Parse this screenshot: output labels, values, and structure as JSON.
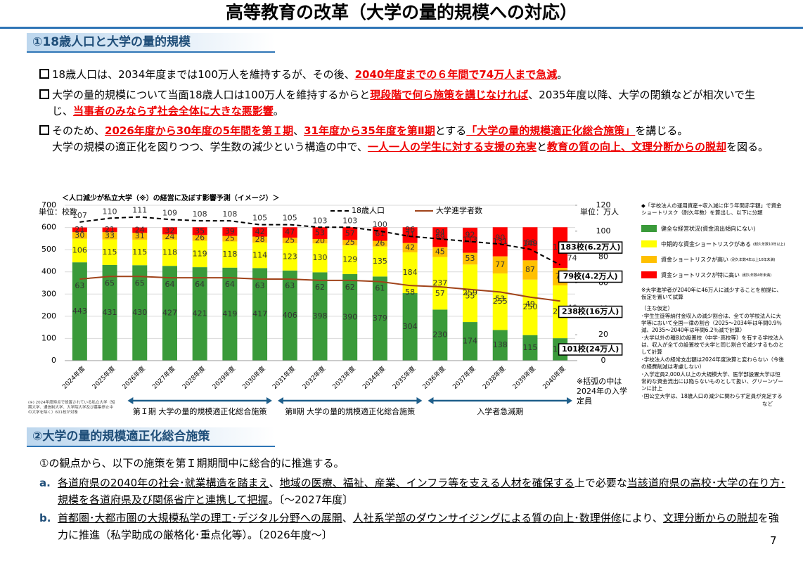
{
  "title": "高等教育の改革（大学の量的規模への対応）",
  "section1": {
    "heading": "①18歳人口と大学の量的規模",
    "bullets": [
      {
        "segments": [
          {
            "text": "18歳人口は、2034年度までは100万人を維持するが、その後、",
            "em": false
          },
          {
            "text": "2040年度までの６年間で74万人まで急減",
            "em": true
          },
          {
            "text": "。",
            "em": false
          }
        ]
      },
      {
        "segments": [
          {
            "text": "大学の量的規模について当面18歳人口は100万人を維持するからと",
            "em": false
          },
          {
            "text": "現段階で何ら施策を講じなければ",
            "em": true
          },
          {
            "text": "、2035年度以降、大学の閉鎖などが相次いで生じ、",
            "em": false
          },
          {
            "text": "当事者のみならず社会全体に大きな悪影響",
            "em": true
          },
          {
            "text": "。",
            "em": false
          }
        ]
      },
      {
        "segments": [
          {
            "text": "そのため、",
            "em": false
          },
          {
            "text": "2026年度から30年度の5年間を第Ｉ期",
            "em": true
          },
          {
            "text": "、",
            "em": false
          },
          {
            "text": "31年度から35年度を第Ⅱ期",
            "em": true
          },
          {
            "text": "とする",
            "em": false
          },
          {
            "text": "「大学の量的規模適正化総合施策」",
            "em": true
          },
          {
            "text": "を講じる。",
            "em": false
          }
        ],
        "continuation": [
          {
            "text": "大学の規模の適正化を図りつつ、学生数の減少という構造の中で、",
            "em": false
          },
          {
            "text": "一人一人の学生に対する支援の充実",
            "em": true
          },
          {
            "text": "と",
            "em": false
          },
          {
            "text": "教育の質の向上、文理分断からの脱却",
            "em": true
          },
          {
            "text": "を図る。",
            "em": false
          }
        ]
      }
    ]
  },
  "chart_data": {
    "type": "stacked-bar-line",
    "title": "＜人口減少が私立大学（※）の経営に及ぼす影響予測（イメージ）＞",
    "y_unit": "単位：校数",
    "y2_unit": "単位：万人",
    "categories": [
      "2024年度",
      "2025年度",
      "2026年度",
      "2027年度",
      "2028年度",
      "2029年度",
      "2030年度",
      "2031年度",
      "2032年度",
      "2033年度",
      "2034年度",
      "2035年度",
      "2036年度",
      "2037年度",
      "2038年度",
      "2039年度",
      "2040年度"
    ],
    "series": [
      {
        "name": "健全な経営状況(資金流出傾向にない)",
        "color": "#3a9a3a",
        "values": [
          443,
          431,
          430,
          427,
          421,
          419,
          417,
          406,
          398,
          390,
          379,
          304,
          230,
          174,
          138,
          115,
          101
        ]
      },
      {
        "name": "中期的な資金ショートリスクがある",
        "legend_note": "(耐久年数10年以上)",
        "color": "#ffff00",
        "values": [
          106,
          115,
          115,
          118,
          119,
          118,
          114,
          123,
          130,
          129,
          135,
          184,
          237,
          259,
          255,
          250,
          238
        ]
      },
      {
        "name": "資金ショートリスクが高い",
        "legend_note": "(耐久年数4年以上10年未満)",
        "color": "#ffc000",
        "values": [
          30,
          33,
          31,
          24,
          26,
          25,
          28,
          25,
          20,
          25,
          26,
          42,
          45,
          53,
          77,
          87,
          79
        ]
      },
      {
        "name": "資金ショートリスクが特に高い",
        "legend_note": "(耐久年数4年未満)",
        "color": "#ff0000",
        "values": [
          21,
          21,
          24,
          32,
          35,
          39,
          42,
          47,
          53,
          57,
          61,
          71,
          89,
          113,
          131,
          149,
          183
        ]
      },
      {
        "name": "18歳人口",
        "axis": "y2",
        "line": "dashed",
        "color": "#000000",
        "values": [
          107,
          110,
          111,
          109,
          108,
          108,
          105,
          105,
          103,
          103,
          100,
          96,
          94,
          92,
          90,
          86,
          74
        ]
      },
      {
        "name": "大学進学者数",
        "axis": "y2",
        "line": "solid",
        "color": "#a0431a",
        "values": [
          63,
          65,
          65,
          64,
          64,
          64,
          63,
          63,
          62,
          62,
          61,
          58,
          57,
          55,
          53,
          49,
          46
        ]
      }
    ],
    "end_labels": [
      "101校(24万人)",
      "238校(16万人)",
      "79校(4.2万人)",
      "183校(6.2万人)"
    ],
    "ylim": [
      0,
      700
    ],
    "yticks": [
      0,
      100,
      200,
      300,
      400,
      500,
      600,
      700
    ],
    "y2lim": [
      0,
      120
    ],
    "y2ticks": [
      0,
      20,
      40,
      60,
      80,
      100,
      120
    ],
    "grid": true,
    "legend_header": "◆「学校法人の運用資産÷収入減に伴う年間赤字額」で資金ショートリスク（耐久年数）を算出し、以下に分類",
    "notes": [
      "※大学進学者が2040年に46万人に減少することを前提に、仮定を置いて試算",
      "（主な仮定）",
      "･学生生徒等納付金収入の減少割合は、全ての学校法人に大学等において全国一律の割合（2025～2034年は年間0.9％減、2035～2040年は年間6.2％減で計算）",
      "･大学以外の種別の設置校（中学･高校等）を有する学校法人は、収入が全ての設置校で大学と同じ割合で減少するものとして計算",
      "･学校法人の経常支出額は2024年度決算と変わらない（今後の経費削減は考慮しない）",
      "･入学定員2,000人以上の大規模大学、医学部設置大学は恒常的な資金流出には陥らないものとして扱い、グリーンゾーンに計上",
      "･国公立大学は、18歳人口の減少に関わらず定員が充足する"
    ],
    "notes_end": "など",
    "bracket_note": "※括弧の中は2024年の入学定員",
    "footnote": "(※) 2024年度時点で設置されている私立大学（短期大学、通信制大学、大学院大学及び募集停止中の大学を除く）601校が対象",
    "phases": [
      {
        "label": "第Ｉ期 大学の量的規模適正化総合施策",
        "from": 2,
        "to": 6
      },
      {
        "label": "第Ⅱ期 大学の量的規模適正化総合施策",
        "from": 7,
        "to": 11
      },
      {
        "label": "入学者急減期",
        "from": 12,
        "to": 16
      }
    ]
  },
  "section2": {
    "heading": "②大学の量的規模適正化総合施策",
    "intro": "①の観点から、以下の施策を第Ｉ期期間中に総合的に推進する。",
    "items": [
      {
        "marker": "a.",
        "segments": [
          {
            "text": "各道府県の2040年の社会･就業構造を踏まえ",
            "u": true
          },
          {
            "text": "、",
            "u": false
          },
          {
            "text": "地域の医療、福祉、産業、インフラ等を支える人材を確保する",
            "u": true
          },
          {
            "text": "上で必要な",
            "u": false
          },
          {
            "text": "当該道府県の高校･大学の在り方･規模を各道府県及び関係省庁と連携して把握",
            "u": true
          },
          {
            "text": "。〔～2027年度〕",
            "u": false
          }
        ]
      },
      {
        "marker": "b.",
        "segments": [
          {
            "text": "首都圏･大都市圏の大規模私学の理工･デジタル分野への展開",
            "u": true
          },
          {
            "text": "、",
            "u": false
          },
          {
            "text": "人社系学部のダウンサイジングによる質の向上･数理併修",
            "u": true
          },
          {
            "text": "により、",
            "u": false
          },
          {
            "text": "文理分断からの脱却",
            "u": true
          },
          {
            "text": "を強力に推進（私学助成の厳格化･重点化等）。〔2026年度～〕",
            "u": false
          }
        ]
      }
    ]
  },
  "page_number": "7"
}
